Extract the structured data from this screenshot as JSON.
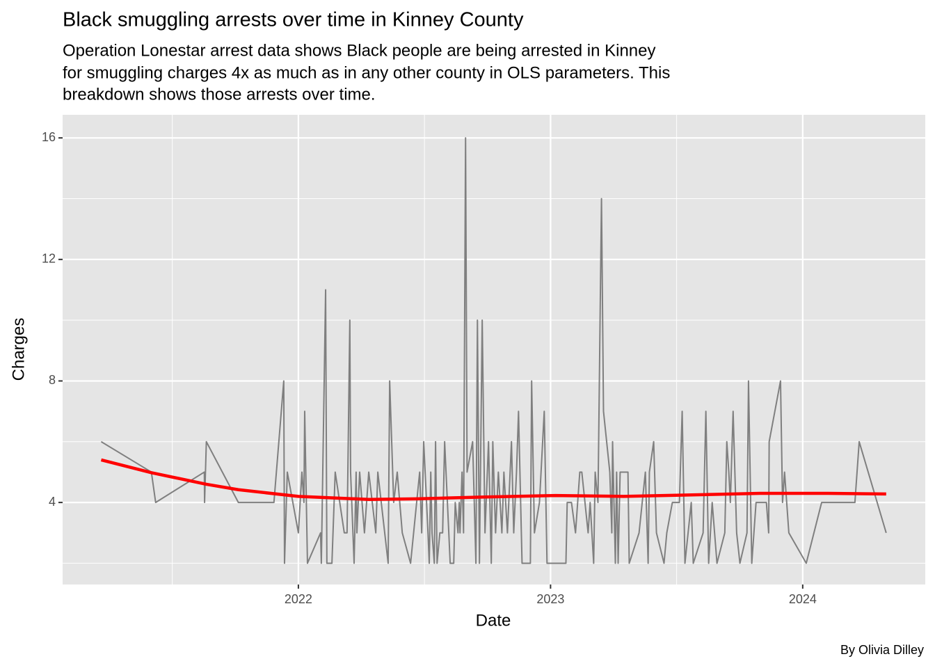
{
  "chart_data": {
    "type": "line",
    "title": "Black smuggling arrests over time in Kinney County",
    "subtitle": [
      "Operation Lonestar arrest data shows Black people are being arrested in Kinney",
      "for smuggling charges 4x as much as in any other county in OLS parameters. This",
      "breakdown shows those arrests over time."
    ],
    "x_label": "Date",
    "y_label": "Charges",
    "caption": "By Olivia Dilley",
    "xlim": [
      2021.065,
      2024.486
    ],
    "xticks": [
      2022,
      2023,
      2024
    ],
    "ylim": [
      1.3,
      16.76
    ],
    "yticks": [
      4,
      8,
      12,
      16
    ],
    "grid": true,
    "series": [
      {
        "color": "#7f7f7f",
        "x": [
          2021.218,
          2021.417,
          2021.434,
          2021.627,
          2021.628,
          2021.635,
          2021.762,
          2021.903,
          2021.942,
          2021.945,
          2021.956,
          2022.0,
          2022.014,
          2022.022,
          2022.025,
          2022.036,
          2022.088,
          2022.091,
          2022.108,
          2022.113,
          2022.133,
          2022.146,
          2022.182,
          2022.193,
          2022.204,
          2022.207,
          2022.221,
          2022.229,
          2022.232,
          2022.243,
          2022.262,
          2022.279,
          2022.307,
          2022.315,
          2022.356,
          2022.362,
          2022.378,
          2022.392,
          2022.412,
          2022.445,
          2022.481,
          2022.489,
          2022.497,
          2022.514,
          2022.519,
          2022.525,
          2022.53,
          2022.539,
          2022.544,
          2022.55,
          2022.561,
          2022.572,
          2022.58,
          2022.602,
          2022.616,
          2022.622,
          2022.633,
          2022.638,
          2022.641,
          2022.649,
          2022.655,
          2022.663,
          2022.669,
          2022.691,
          2022.704,
          2022.71,
          2022.718,
          2022.729,
          2022.74,
          2022.754,
          2022.765,
          2022.771,
          2022.782,
          2022.793,
          2022.807,
          2022.815,
          2022.829,
          2022.845,
          2022.854,
          2022.865,
          2022.873,
          2022.887,
          2022.92,
          2022.925,
          2022.936,
          2022.956,
          2022.975,
          2022.986,
          2023.061,
          2023.066,
          2023.083,
          2023.099,
          2023.116,
          2023.124,
          2023.149,
          2023.157,
          2023.171,
          2023.177,
          2023.188,
          2023.202,
          2023.21,
          2023.235,
          2023.243,
          2023.246,
          2023.257,
          2023.262,
          2023.268,
          2023.276,
          2023.307,
          2023.312,
          2023.351,
          2023.376,
          2023.387,
          2023.392,
          2023.409,
          2023.42,
          2023.45,
          2023.461,
          2023.483,
          2023.511,
          2023.522,
          2023.533,
          2023.558,
          2023.566,
          2023.605,
          2023.616,
          2023.627,
          2023.641,
          2023.66,
          2023.691,
          2023.699,
          2023.707,
          2023.713,
          2023.724,
          2023.738,
          2023.751,
          2023.779,
          2023.785,
          2023.798,
          2023.815,
          2023.84,
          2023.856,
          2023.865,
          2023.867,
          2023.912,
          2023.92,
          2023.928,
          2023.945,
          2024.014,
          2024.075,
          2024.207,
          2024.224,
          2024.331
        ],
        "values": [
          6,
          5,
          4,
          5,
          4,
          6,
          4,
          4,
          8,
          2,
          5,
          3,
          5,
          4,
          7,
          2,
          3,
          2,
          11,
          2,
          2,
          5,
          3,
          3,
          10,
          5,
          2,
          5,
          3,
          5,
          3,
          5,
          3,
          5,
          2,
          8,
          4,
          5,
          3,
          2,
          5,
          3,
          6,
          3,
          2,
          5,
          3,
          2,
          6,
          2,
          3,
          3,
          6,
          2,
          2,
          4,
          3,
          4,
          3,
          5,
          3,
          16,
          5,
          6,
          2,
          10,
          2,
          10,
          3,
          6,
          2,
          6,
          3,
          5,
          3,
          5,
          3,
          6,
          3,
          5,
          7,
          2,
          2,
          8,
          3,
          4,
          7,
          2,
          2,
          4,
          4,
          3,
          5,
          5,
          3,
          4,
          2,
          5,
          4,
          14,
          7,
          5,
          3,
          6,
          2,
          5,
          2,
          5,
          5,
          2,
          3,
          5,
          2,
          5,
          6,
          3,
          2,
          3,
          4,
          4,
          7,
          2,
          4,
          2,
          3,
          7,
          2,
          4,
          2,
          3,
          6,
          5,
          4,
          7,
          3,
          2,
          3,
          8,
          2,
          4,
          4,
          4,
          3,
          6,
          8,
          4,
          5,
          3,
          2,
          4,
          4,
          6,
          3
        ]
      },
      {
        "color": "#ff0000",
        "x": [
          2021.218,
          2021.417,
          2021.635,
          2021.762,
          2022.0,
          2022.28,
          2022.47,
          2022.74,
          2023.02,
          2023.29,
          2023.56,
          2023.83,
          2024.1,
          2024.331
        ],
        "values": [
          5.4,
          4.98,
          4.6,
          4.42,
          4.2,
          4.1,
          4.12,
          4.18,
          4.23,
          4.2,
          4.25,
          4.3,
          4.3,
          4.28
        ]
      }
    ]
  }
}
